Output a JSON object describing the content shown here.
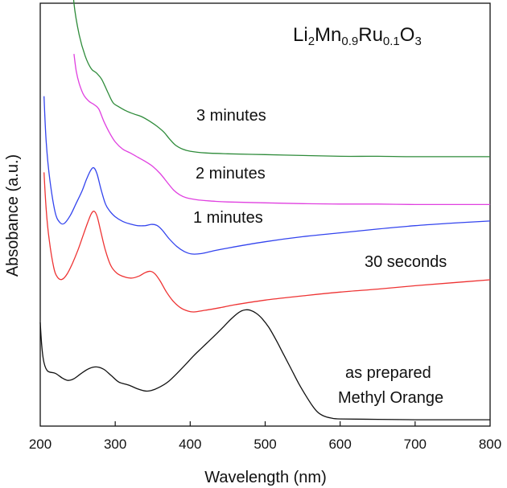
{
  "chart_data": {
    "type": "line",
    "title": "",
    "xlabel": "Wavelength (nm)",
    "ylabel": "Absobance (a.u.)",
    "xlim": [
      200,
      800
    ],
    "x_ticks": [
      200,
      300,
      400,
      500,
      600,
      700,
      800
    ],
    "x_tick_labels": [
      "200",
      "300",
      "400",
      "500",
      "600",
      "700",
      "800"
    ],
    "y_ticks_shown": false,
    "grid": false,
    "compound_label": {
      "parts": [
        {
          "text": "Li",
          "sub": false
        },
        {
          "text": "2",
          "sub": true
        },
        {
          "text": "Mn",
          "sub": false
        },
        {
          "text": "0.9",
          "sub": true
        },
        {
          "text": "Ru",
          "sub": false
        },
        {
          "text": "0.1",
          "sub": true
        },
        {
          "text": "O",
          "sub": false
        },
        {
          "text": "3",
          "sub": true
        }
      ]
    },
    "annotations": [
      {
        "key": "3min",
        "text": "3 minutes"
      },
      {
        "key": "2min",
        "text": "2 minutes"
      },
      {
        "key": "1min",
        "text": "1 minutes"
      },
      {
        "key": "30s",
        "text": "30 seconds"
      },
      {
        "key": "mo1",
        "text": "as prepared"
      },
      {
        "key": "mo2",
        "text": "Methyl Orange"
      }
    ],
    "series": [
      {
        "key": "3min",
        "color": "#2e8b3a",
        "points": [
          [
            242,
            1.1
          ],
          [
            245,
            1.0
          ],
          [
            252,
            0.925
          ],
          [
            260,
            0.875
          ],
          [
            268,
            0.845
          ],
          [
            275,
            0.835
          ],
          [
            282,
            0.82
          ],
          [
            290,
            0.79
          ],
          [
            297,
            0.765
          ],
          [
            305,
            0.755
          ],
          [
            315,
            0.745
          ],
          [
            325,
            0.738
          ],
          [
            335,
            0.732
          ],
          [
            345,
            0.722
          ],
          [
            355,
            0.71
          ],
          [
            365,
            0.695
          ],
          [
            372,
            0.68
          ],
          [
            380,
            0.665
          ],
          [
            390,
            0.655
          ],
          [
            400,
            0.65
          ],
          [
            420,
            0.646
          ],
          [
            450,
            0.644
          ],
          [
            500,
            0.642
          ],
          [
            550,
            0.64
          ],
          [
            600,
            0.638
          ],
          [
            650,
            0.638
          ],
          [
            700,
            0.637
          ],
          [
            750,
            0.637
          ],
          [
            800,
            0.637
          ]
        ]
      },
      {
        "key": "2min",
        "color": "#e040e0",
        "points": [
          [
            245,
            0.88
          ],
          [
            248,
            0.84
          ],
          [
            252,
            0.81
          ],
          [
            258,
            0.783
          ],
          [
            265,
            0.768
          ],
          [
            272,
            0.76
          ],
          [
            278,
            0.75
          ],
          [
            285,
            0.72
          ],
          [
            292,
            0.695
          ],
          [
            300,
            0.672
          ],
          [
            310,
            0.655
          ],
          [
            320,
            0.646
          ],
          [
            330,
            0.636
          ],
          [
            340,
            0.626
          ],
          [
            350,
            0.614
          ],
          [
            360,
            0.597
          ],
          [
            370,
            0.575
          ],
          [
            378,
            0.558
          ],
          [
            386,
            0.547
          ],
          [
            395,
            0.54
          ],
          [
            410,
            0.535
          ],
          [
            430,
            0.532
          ],
          [
            450,
            0.53
          ],
          [
            500,
            0.528
          ],
          [
            550,
            0.526
          ],
          [
            600,
            0.525
          ],
          [
            650,
            0.525
          ],
          [
            700,
            0.524
          ],
          [
            750,
            0.524
          ],
          [
            800,
            0.524
          ]
        ]
      },
      {
        "key": "1min",
        "color": "#3344ee",
        "points": [
          [
            205,
            0.78
          ],
          [
            208,
            0.67
          ],
          [
            213,
            0.58
          ],
          [
            220,
            0.505
          ],
          [
            226,
            0.482
          ],
          [
            232,
            0.479
          ],
          [
            240,
            0.498
          ],
          [
            248,
            0.527
          ],
          [
            256,
            0.557
          ],
          [
            262,
            0.585
          ],
          [
            268,
            0.607
          ],
          [
            272,
            0.61
          ],
          [
            276,
            0.595
          ],
          [
            281,
            0.56
          ],
          [
            287,
            0.525
          ],
          [
            293,
            0.508
          ],
          [
            300,
            0.495
          ],
          [
            310,
            0.484
          ],
          [
            320,
            0.478
          ],
          [
            330,
            0.474
          ],
          [
            340,
            0.474
          ],
          [
            348,
            0.477
          ],
          [
            355,
            0.475
          ],
          [
            362,
            0.465
          ],
          [
            372,
            0.443
          ],
          [
            382,
            0.425
          ],
          [
            392,
            0.413
          ],
          [
            402,
            0.407
          ],
          [
            415,
            0.408
          ],
          [
            430,
            0.414
          ],
          [
            450,
            0.421
          ],
          [
            500,
            0.436
          ],
          [
            550,
            0.448
          ],
          [
            600,
            0.457
          ],
          [
            650,
            0.466
          ],
          [
            700,
            0.474
          ],
          [
            750,
            0.48
          ],
          [
            800,
            0.485
          ]
        ]
      },
      {
        "key": "30s",
        "color": "#ee3333",
        "points": [
          [
            205,
            0.6
          ],
          [
            208,
            0.51
          ],
          [
            212,
            0.44
          ],
          [
            218,
            0.375
          ],
          [
            223,
            0.352
          ],
          [
            229,
            0.347
          ],
          [
            236,
            0.36
          ],
          [
            243,
            0.385
          ],
          [
            250,
            0.415
          ],
          [
            257,
            0.45
          ],
          [
            263,
            0.48
          ],
          [
            268,
            0.502
          ],
          [
            272,
            0.508
          ],
          [
            276,
            0.495
          ],
          [
            281,
            0.458
          ],
          [
            287,
            0.415
          ],
          [
            294,
            0.38
          ],
          [
            302,
            0.362
          ],
          [
            312,
            0.353
          ],
          [
            322,
            0.35
          ],
          [
            332,
            0.355
          ],
          [
            340,
            0.363
          ],
          [
            347,
            0.366
          ],
          [
            353,
            0.36
          ],
          [
            360,
            0.343
          ],
          [
            368,
            0.318
          ],
          [
            377,
            0.296
          ],
          [
            387,
            0.28
          ],
          [
            397,
            0.272
          ],
          [
            405,
            0.27
          ],
          [
            420,
            0.274
          ],
          [
            440,
            0.28
          ],
          [
            460,
            0.287
          ],
          [
            500,
            0.298
          ],
          [
            550,
            0.308
          ],
          [
            600,
            0.317
          ],
          [
            650,
            0.324
          ],
          [
            700,
            0.332
          ],
          [
            750,
            0.339
          ],
          [
            800,
            0.346
          ]
        ]
      },
      {
        "key": "mo",
        "color": "#111111",
        "points": [
          [
            200,
            0.245
          ],
          [
            202,
            0.19
          ],
          [
            205,
            0.15
          ],
          [
            210,
            0.13
          ],
          [
            220,
            0.125
          ],
          [
            230,
            0.113
          ],
          [
            237,
            0.108
          ],
          [
            245,
            0.112
          ],
          [
            255,
            0.125
          ],
          [
            265,
            0.136
          ],
          [
            275,
            0.14
          ],
          [
            285,
            0.134
          ],
          [
            295,
            0.119
          ],
          [
            305,
            0.104
          ],
          [
            318,
            0.097
          ],
          [
            330,
            0.088
          ],
          [
            340,
            0.083
          ],
          [
            348,
            0.084
          ],
          [
            358,
            0.091
          ],
          [
            370,
            0.104
          ],
          [
            382,
            0.124
          ],
          [
            395,
            0.148
          ],
          [
            405,
            0.167
          ],
          [
            415,
            0.184
          ],
          [
            425,
            0.201
          ],
          [
            435,
            0.218
          ],
          [
            445,
            0.236
          ],
          [
            455,
            0.254
          ],
          [
            462,
            0.265
          ],
          [
            468,
            0.272
          ],
          [
            474,
            0.275
          ],
          [
            480,
            0.274
          ],
          [
            488,
            0.267
          ],
          [
            496,
            0.254
          ],
          [
            505,
            0.233
          ],
          [
            515,
            0.202
          ],
          [
            525,
            0.168
          ],
          [
            535,
            0.134
          ],
          [
            545,
            0.1
          ],
          [
            555,
            0.07
          ],
          [
            563,
            0.048
          ],
          [
            570,
            0.033
          ],
          [
            578,
            0.024
          ],
          [
            588,
            0.019
          ],
          [
            600,
            0.017
          ],
          [
            650,
            0.016
          ],
          [
            700,
            0.015
          ],
          [
            750,
            0.015
          ],
          [
            800,
            0.015
          ]
        ]
      }
    ]
  }
}
